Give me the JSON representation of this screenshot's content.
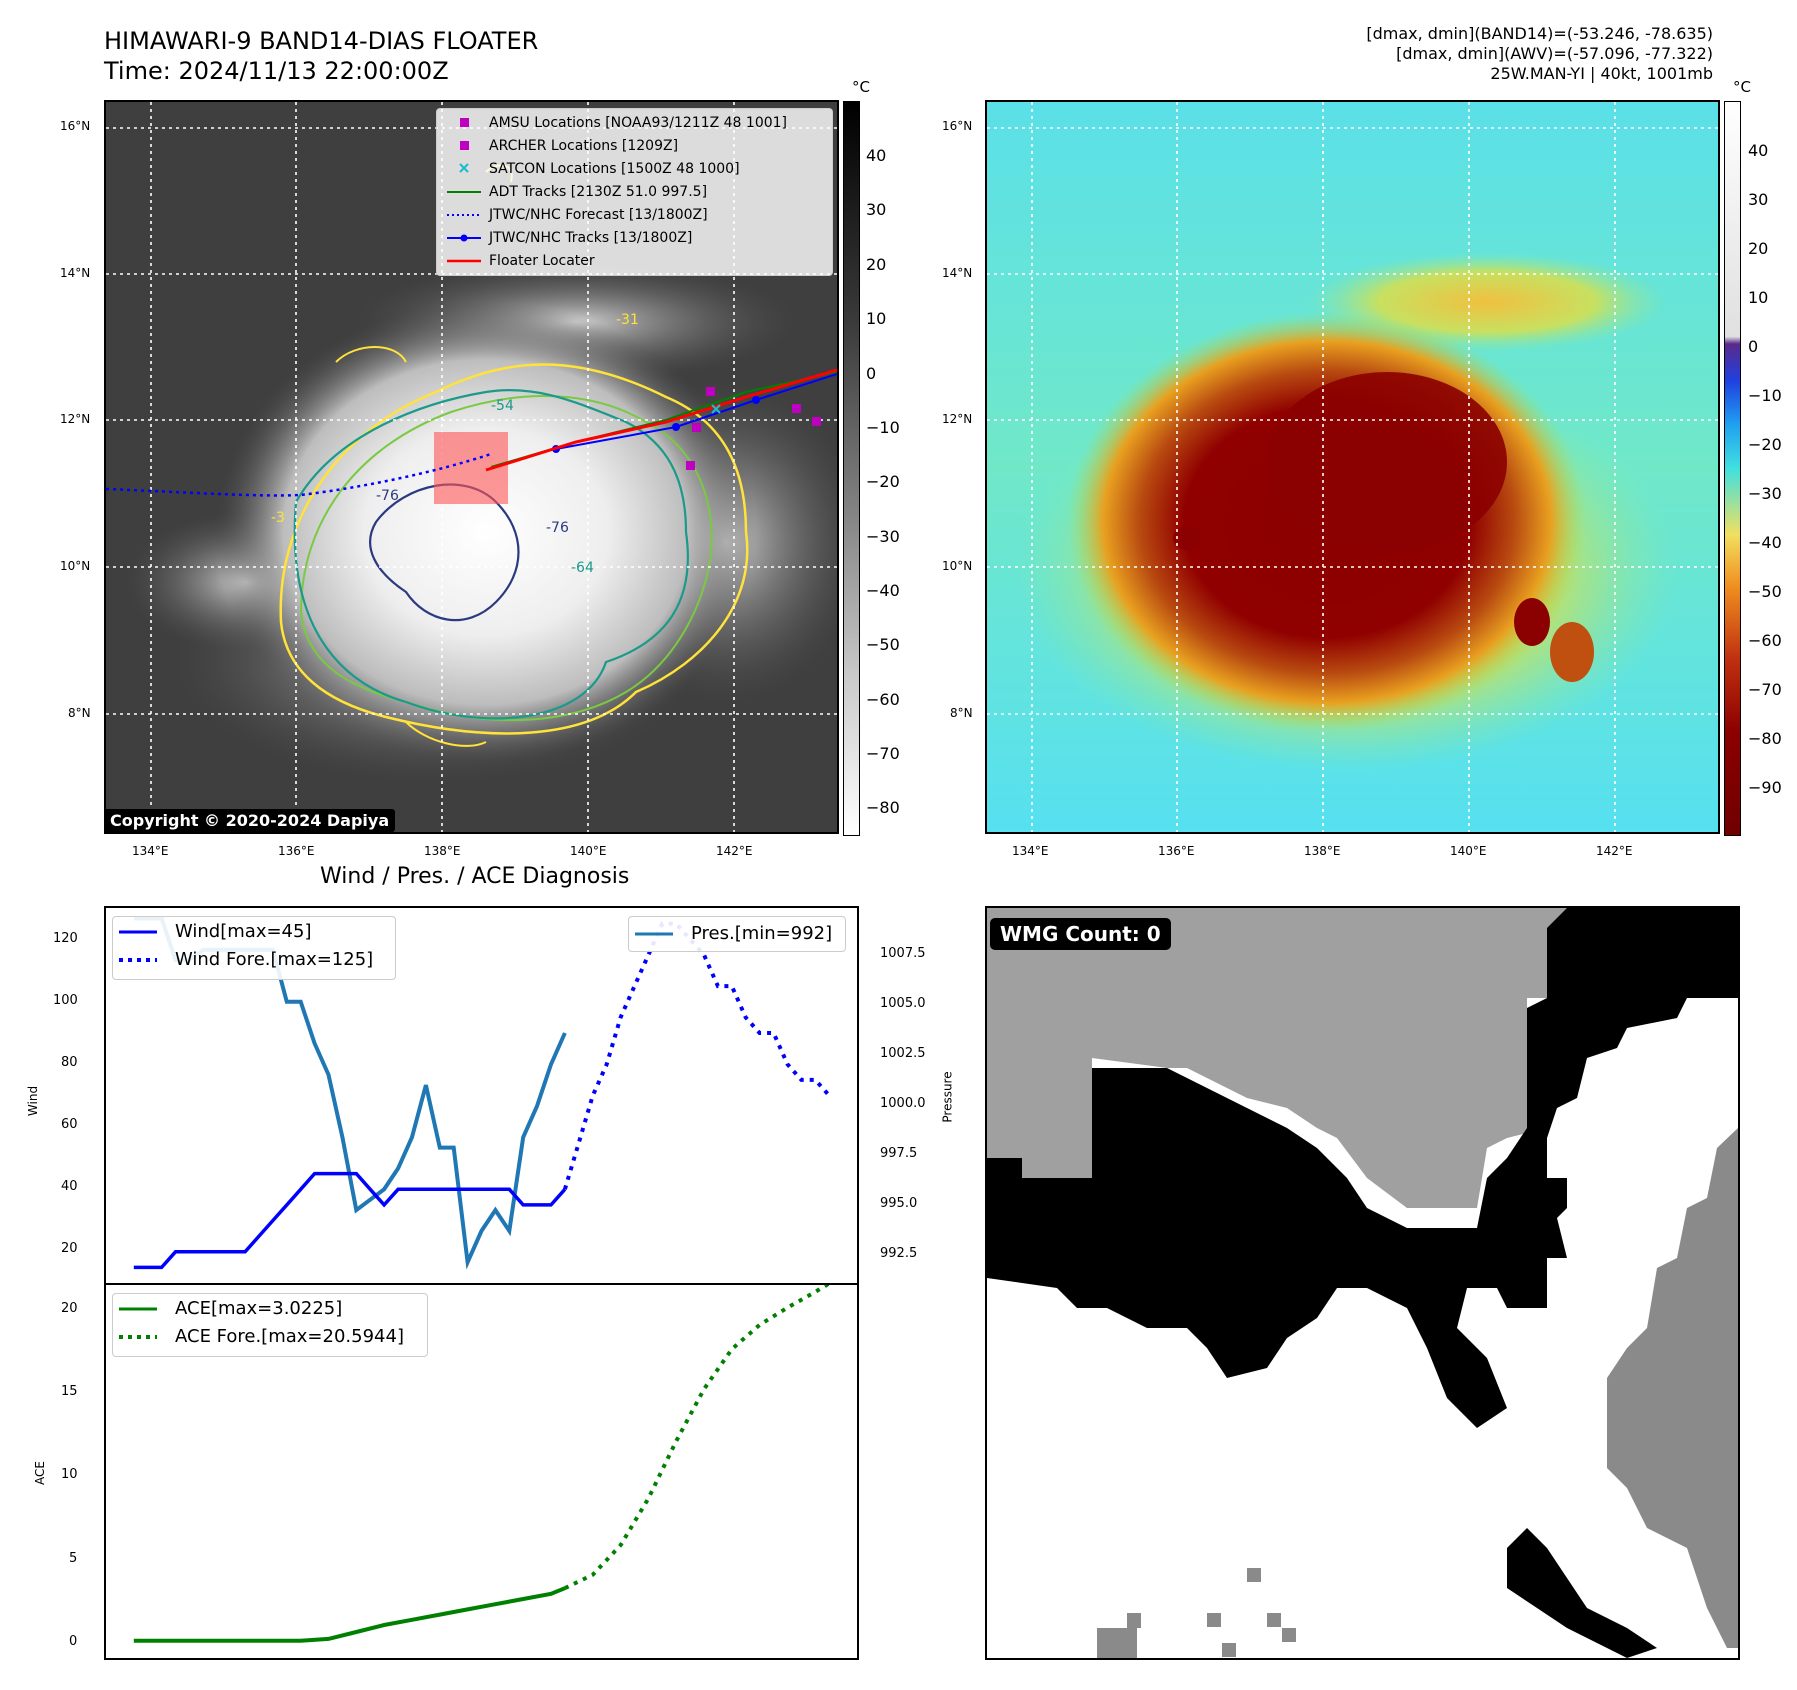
{
  "header": {
    "title_line1": "HIMAWARI-9 BAND14-DIAS FLOATER",
    "title_line2": "Time: 2024/11/13 22:00:00Z",
    "stats_line1": "[dmax, dmin](BAND14)=(-53.246, -78.635)",
    "stats_line2": "[dmax, dmin](AWV)=(-57.096, -77.322)",
    "stats_line3": "25W.MAN-YI | 40kt, 1001mb"
  },
  "map_panels": {
    "lat_ticks": [
      "16°N",
      "14°N",
      "12°N",
      "10°N",
      "8°N"
    ],
    "lon_ticks": [
      "134°E",
      "136°E",
      "138°E",
      "140°E",
      "142°E"
    ],
    "copyright": "Copyright © 2020-2024 Dapiya",
    "contour_labels": [
      "-31",
      "-54",
      "-76",
      "-76",
      "-64",
      "-3"
    ],
    "left_colorbar": {
      "unit": "°C",
      "ticks": [
        "40",
        "30",
        "20",
        "10",
        "0",
        "−10",
        "−20",
        "−30",
        "−40",
        "−50",
        "−60",
        "−70",
        "−80"
      ]
    },
    "right_colorbar": {
      "unit": "°C",
      "ticks": [
        "40",
        "30",
        "20",
        "10",
        "0",
        "−10",
        "−20",
        "−30",
        "−40",
        "−50",
        "−60",
        "−70",
        "−80",
        "−90"
      ]
    },
    "legend": [
      {
        "label": "AMSU Locations [NOAA93/1211Z 48 1001]",
        "marker": "square",
        "color": "#c000c0"
      },
      {
        "label": "ARCHER Locations [1209Z]",
        "marker": "square",
        "color": "#c000c0"
      },
      {
        "label": "SATCON Locations [1500Z 48 1000]",
        "marker": "x",
        "color": "#17becf"
      },
      {
        "label": "ADT Tracks [2130Z 51.0 997.5]",
        "marker": "line",
        "color": "#008000"
      },
      {
        "label": "JTWC/NHC Forecast [13/1800Z]",
        "marker": "dotted",
        "color": "#0000ff"
      },
      {
        "label": "JTWC/NHC Tracks [13/1800Z]",
        "marker": "line-dot",
        "color": "#0000ff"
      },
      {
        "label": "Floater Locater",
        "marker": "line",
        "color": "#ff0000"
      }
    ]
  },
  "diagnosis": {
    "title": "Wind / Pres. / ACE Diagnosis",
    "wind_ylabel": "Wind",
    "pres_ylabel": "Pressure",
    "ace_ylabel": "ACE",
    "wind_ticks": [
      "120",
      "100",
      "80",
      "60",
      "40",
      "20"
    ],
    "pres_ticks": [
      "1007.5",
      "1005.0",
      "1002.5",
      "1000.0",
      "997.5",
      "995.0",
      "992.5"
    ],
    "ace_ticks": [
      "20",
      "15",
      "10",
      "5",
      "0"
    ],
    "legend_wind": "Wind[max=45]",
    "legend_wind_fore": "Wind Fore.[max=125]",
    "legend_pres": "Pres.[min=992]",
    "legend_ace": "ACE[max=3.0225]",
    "legend_ace_fore": "ACE Fore.[max=20.5944]"
  },
  "wmg": {
    "label": "WMG Count: 0"
  },
  "colors": {
    "wind": "#0000ff",
    "pressure": "#1f77b4",
    "ace": "#008000",
    "floater": "#ff0000"
  },
  "chart_data": [
    {
      "type": "line",
      "title": "",
      "ylabel": "Wind",
      "ylim": [
        10,
        130
      ],
      "series": [
        {
          "name": "Wind[max=45]",
          "x": [
            0,
            1,
            2,
            3,
            4,
            5,
            6,
            7,
            8,
            9,
            10,
            11,
            12,
            13,
            14,
            15,
            16,
            17,
            18,
            19,
            20,
            21,
            22,
            23,
            24,
            25,
            26,
            27,
            28,
            29,
            30,
            31
          ],
          "values": [
            15,
            15,
            15,
            20,
            20,
            20,
            20,
            20,
            20,
            25,
            30,
            35,
            40,
            45,
            45,
            45,
            45,
            40,
            35,
            40,
            40,
            40,
            40,
            40,
            40,
            40,
            40,
            40,
            35,
            35,
            35,
            40
          ]
        },
        {
          "name": "Wind Fore.[max=125]",
          "x": [
            31,
            32,
            33,
            34,
            35,
            36,
            37,
            38,
            39,
            40,
            41,
            42,
            43,
            44,
            45,
            46,
            47,
            48,
            49,
            50
          ],
          "values": [
            40,
            55,
            70,
            80,
            95,
            105,
            115,
            125,
            125,
            120,
            115,
            105,
            105,
            95,
            90,
            90,
            80,
            75,
            75,
            70
          ]
        }
      ]
    },
    {
      "type": "line",
      "ylabel": "Pressure",
      "ylim": [
        991.5,
        1009.5
      ],
      "series": [
        {
          "name": "Pres.[min=992]",
          "x": [
            0,
            1,
            2,
            3,
            4,
            5,
            6,
            7,
            8,
            9,
            10,
            11,
            12,
            13,
            14,
            15,
            16,
            17,
            18,
            19,
            20,
            21,
            22,
            23,
            24,
            25,
            26,
            27,
            28,
            29,
            30,
            31
          ],
          "values": [
            1009,
            1009,
            1009,
            1007,
            1007,
            1007.5,
            1007.5,
            1007.5,
            1007.5,
            1007.5,
            1007.5,
            1005,
            1005,
            1003,
            1001.5,
            998.5,
            995,
            995.5,
            996,
            997,
            998.5,
            1001,
            998,
            998,
            992.5,
            994,
            995,
            994,
            998.5,
            1000,
            1002,
            1003.5
          ]
        }
      ]
    },
    {
      "type": "line",
      "ylabel": "ACE",
      "ylim": [
        -1,
        20.5
      ],
      "series": [
        {
          "name": "ACE[max=3.0225]",
          "x": [
            0,
            2,
            4,
            6,
            8,
            10,
            12,
            14,
            16,
            18,
            20,
            22,
            24,
            26,
            28,
            30,
            31
          ],
          "values": [
            0,
            0,
            0,
            0,
            0,
            0,
            0,
            0.1,
            0.5,
            0.9,
            1.2,
            1.5,
            1.8,
            2.1,
            2.4,
            2.7,
            3.0225
          ]
        },
        {
          "name": "ACE Fore.[max=20.5944]",
          "x": [
            31,
            33,
            35,
            37,
            39,
            41,
            43,
            45,
            47,
            49,
            50
          ],
          "values": [
            3.0225,
            3.8,
            5.5,
            8.2,
            11.5,
            14.5,
            16.8,
            18.2,
            19.2,
            20.1,
            20.5944
          ]
        }
      ]
    }
  ]
}
